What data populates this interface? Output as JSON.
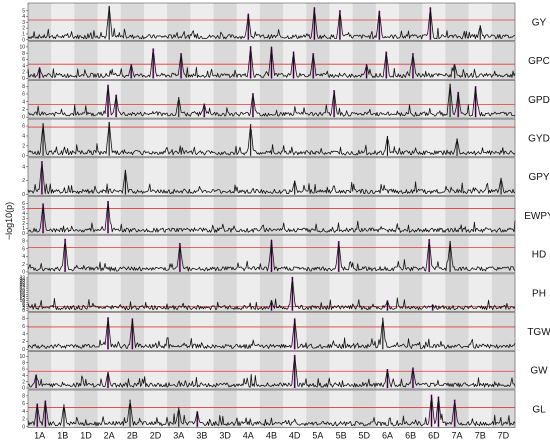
{
  "chart_data": {
    "type": "line",
    "ylabel": "−log10(p)",
    "chromosomes": [
      "1A",
      "1B",
      "1D",
      "2A",
      "2B",
      "2D",
      "3A",
      "3B",
      "3D",
      "4A",
      "4B",
      "4D",
      "5A",
      "5B",
      "5D",
      "6A",
      "6B",
      "6D",
      "7A",
      "7B",
      "7D"
    ],
    "chromosome_shading": "alternating light/dark gray bands",
    "threshold_line_color": "#e03a3a",
    "trace_color": "#111111",
    "highlight_color": "#e040e0",
    "panels": [
      {
        "trait": "GY",
        "yticks": [
          0,
          1,
          2,
          3,
          4,
          5
        ],
        "ymax": 6,
        "threshold": 3.4,
        "peaks": [
          {
            "chr": "2A",
            "pos": 0.5,
            "value": 5.8,
            "hl": false
          },
          {
            "chr": "4A",
            "pos": 0.5,
            "value": 4.5,
            "hl": true
          },
          {
            "chr": "5A",
            "pos": 0.35,
            "value": 5.6,
            "hl": true
          },
          {
            "chr": "5B",
            "pos": 0.45,
            "value": 5.1,
            "hl": true
          },
          {
            "chr": "6A",
            "pos": 0.15,
            "value": 5.0,
            "hl": true
          },
          {
            "chr": "6D",
            "pos": 0.35,
            "value": 5.6,
            "hl": true
          },
          {
            "chr": "7B",
            "pos": 0.5,
            "value": 2.5,
            "hl": false
          }
        ]
      },
      {
        "trait": "GPC",
        "yticks": [
          0,
          2,
          4,
          6,
          8,
          10
        ],
        "ymax": 11,
        "threshold": 4.5,
        "peaks": [
          {
            "chr": "1A",
            "pos": 0.5,
            "value": 3.5,
            "hl": true
          },
          {
            "chr": "2B",
            "pos": 0.45,
            "value": 4.5,
            "hl": true
          },
          {
            "chr": "2D",
            "pos": 0.4,
            "value": 9.5,
            "hl": true
          },
          {
            "chr": "3A",
            "pos": 0.6,
            "value": 8.0,
            "hl": true
          },
          {
            "chr": "4A",
            "pos": 0.6,
            "value": 10.2,
            "hl": true
          },
          {
            "chr": "4B",
            "pos": 0.5,
            "value": 10.0,
            "hl": true
          },
          {
            "chr": "4D",
            "pos": 0.45,
            "value": 8.5,
            "hl": true
          },
          {
            "chr": "5A",
            "pos": 0.3,
            "value": 8.0,
            "hl": true
          },
          {
            "chr": "5D",
            "pos": 0.6,
            "value": 4.5,
            "hl": true
          },
          {
            "chr": "6A",
            "pos": 0.45,
            "value": 8.5,
            "hl": true
          },
          {
            "chr": "6B",
            "pos": 0.6,
            "value": 8.0,
            "hl": true
          },
          {
            "chr": "7A",
            "pos": 0.4,
            "value": 4.5,
            "hl": false
          }
        ]
      },
      {
        "trait": "GPD",
        "yticks": [
          0,
          2,
          4,
          6,
          8
        ],
        "ymax": 9,
        "threshold": 3.3,
        "peaks": [
          {
            "chr": "2A",
            "pos": 0.45,
            "value": 8.4,
            "hl": true
          },
          {
            "chr": "2A",
            "pos": 0.8,
            "value": 5.8,
            "hl": true
          },
          {
            "chr": "3A",
            "pos": 0.5,
            "value": 5.2,
            "hl": false
          },
          {
            "chr": "3B",
            "pos": 0.6,
            "value": 3.5,
            "hl": true
          },
          {
            "chr": "4A",
            "pos": 0.7,
            "value": 6.2,
            "hl": true
          },
          {
            "chr": "5B",
            "pos": 0.2,
            "value": 7.0,
            "hl": true
          },
          {
            "chr": "7A",
            "pos": 0.2,
            "value": 8.6,
            "hl": false
          },
          {
            "chr": "7A",
            "pos": 0.55,
            "value": 6.5,
            "hl": true
          },
          {
            "chr": "7B",
            "pos": 0.3,
            "value": 8.0,
            "hl": true
          }
        ]
      },
      {
        "trait": "GYD",
        "yticks": [
          0,
          2,
          4,
          6
        ],
        "ymax": 7,
        "threshold": 5.8,
        "peaks": [
          {
            "chr": "1A",
            "pos": 0.65,
            "value": 6.6,
            "hl": false
          },
          {
            "chr": "2A",
            "pos": 0.5,
            "value": 6.8,
            "hl": false
          },
          {
            "chr": "4A",
            "pos": 0.6,
            "value": 6.4,
            "hl": false
          },
          {
            "chr": "6A",
            "pos": 0.5,
            "value": 4.0,
            "hl": false
          },
          {
            "chr": "7A",
            "pos": 0.5,
            "value": 3.5,
            "hl": false
          }
        ]
      },
      {
        "trait": "GPY",
        "yticks": [
          0,
          2,
          4
        ],
        "ymax": 5,
        "threshold": null,
        "peaks": [
          {
            "chr": "1A",
            "pos": 0.6,
            "value": 4.8,
            "hl": true
          },
          {
            "chr": "2B",
            "pos": 0.2,
            "value": 3.5,
            "hl": false
          },
          {
            "chr": "4D",
            "pos": 0.5,
            "value": 2.0,
            "hl": false
          },
          {
            "chr": "7D",
            "pos": 0.4,
            "value": 2.4,
            "hl": false
          }
        ]
      },
      {
        "trait": "EWPY",
        "yticks": [
          0,
          1,
          2,
          3,
          4,
          5,
          6
        ],
        "ymax": 7,
        "threshold": 5.0,
        "peaks": [
          {
            "chr": "1A",
            "pos": 0.65,
            "value": 6.0,
            "hl": true
          },
          {
            "chr": "2A",
            "pos": 0.45,
            "value": 6.5,
            "hl": true
          }
        ]
      },
      {
        "trait": "HD",
        "yticks": [
          0,
          2,
          4,
          6,
          8
        ],
        "ymax": 9,
        "threshold": 6.3,
        "peaks": [
          {
            "chr": "1B",
            "pos": 0.6,
            "value": 8.6,
            "hl": true
          },
          {
            "chr": "3A",
            "pos": 0.55,
            "value": 7.5,
            "hl": true
          },
          {
            "chr": "4B",
            "pos": 0.5,
            "value": 8.3,
            "hl": true
          },
          {
            "chr": "5B",
            "pos": 0.4,
            "value": 8.0,
            "hl": true
          },
          {
            "chr": "6D",
            "pos": 0.3,
            "value": 8.5,
            "hl": true
          },
          {
            "chr": "7A",
            "pos": 0.2,
            "value": 8.0,
            "hl": false
          }
        ]
      },
      {
        "trait": "PH",
        "yticks": [
          0,
          2,
          4,
          6,
          8,
          10,
          12,
          14,
          16,
          18,
          20,
          22,
          24,
          26,
          28,
          30,
          32
        ],
        "ymax": 34,
        "threshold": 4.0,
        "peaks": [
          {
            "chr": "4B",
            "pos": 0.5,
            "value": 10.0,
            "hl": true
          },
          {
            "chr": "4D",
            "pos": 0.4,
            "value": 33.0,
            "hl": true
          },
          {
            "chr": "6A",
            "pos": 0.5,
            "value": 10.0,
            "hl": true
          },
          {
            "chr": "6D",
            "pos": 0.45,
            "value": 6.0,
            "hl": true
          }
        ]
      },
      {
        "trait": "TGW",
        "yticks": [
          0,
          2,
          4,
          6,
          8
        ],
        "ymax": 9,
        "threshold": 5.8,
        "peaks": [
          {
            "chr": "2A",
            "pos": 0.45,
            "value": 8.3,
            "hl": true
          },
          {
            "chr": "2B",
            "pos": 0.5,
            "value": 8.0,
            "hl": true
          },
          {
            "chr": "4D",
            "pos": 0.5,
            "value": 8.0,
            "hl": true
          },
          {
            "chr": "6A",
            "pos": 0.3,
            "value": 8.2,
            "hl": false
          }
        ]
      },
      {
        "trait": "GW",
        "yticks": [
          0,
          2,
          4,
          6,
          8,
          10
        ],
        "ymax": 11,
        "threshold": 5.3,
        "peaks": [
          {
            "chr": "1A",
            "pos": 0.35,
            "value": 4.2,
            "hl": true
          },
          {
            "chr": "2A",
            "pos": 0.45,
            "value": 5.0,
            "hl": true
          },
          {
            "chr": "4D",
            "pos": 0.5,
            "value": 10.5,
            "hl": true
          },
          {
            "chr": "6A",
            "pos": 0.5,
            "value": 6.0,
            "hl": true
          },
          {
            "chr": "6B",
            "pos": 0.6,
            "value": 6.5,
            "hl": true
          }
        ]
      },
      {
        "trait": "GL",
        "yticks": [
          0,
          2,
          4,
          6,
          8
        ],
        "ymax": 9,
        "threshold": 5.0,
        "peaks": [
          {
            "chr": "1A",
            "pos": 0.4,
            "value": 6.0,
            "hl": true
          },
          {
            "chr": "1A",
            "pos": 0.75,
            "value": 6.8,
            "hl": true
          },
          {
            "chr": "1B",
            "pos": 0.55,
            "value": 5.8,
            "hl": false
          },
          {
            "chr": "2B",
            "pos": 0.4,
            "value": 7.0,
            "hl": false
          },
          {
            "chr": "3A",
            "pos": 0.5,
            "value": 5.0,
            "hl": false
          },
          {
            "chr": "3B",
            "pos": 0.3,
            "value": 4.0,
            "hl": true
          },
          {
            "chr": "6D",
            "pos": 0.4,
            "value": 8.3,
            "hl": true
          },
          {
            "chr": "6D",
            "pos": 0.7,
            "value": 7.8,
            "hl": true
          },
          {
            "chr": "7A",
            "pos": 0.4,
            "value": 7.0,
            "hl": true
          }
        ]
      }
    ]
  }
}
